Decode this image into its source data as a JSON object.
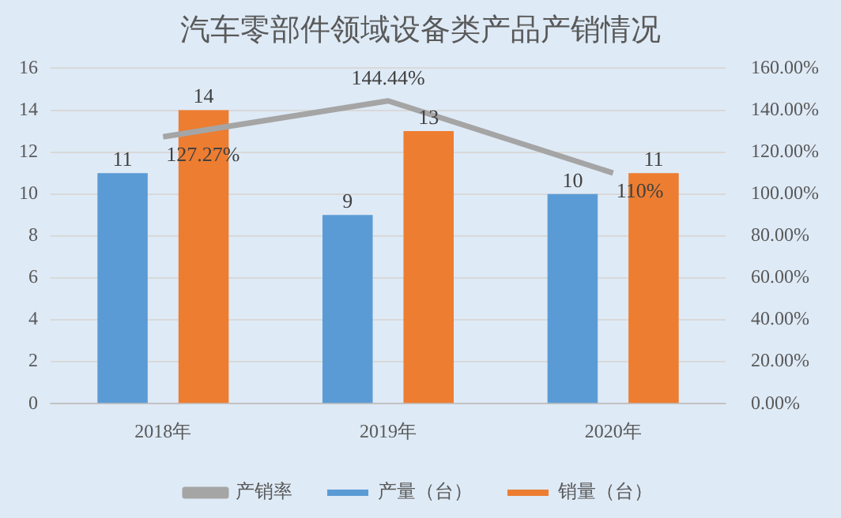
{
  "chart_data": {
    "type": "bar",
    "title": "汽车零部件领域设备类产品产销情况",
    "categories": [
      "2018年",
      "2019年",
      "2020年"
    ],
    "series": [
      {
        "name": "产量（台）",
        "color": "#5b9bd5",
        "values": [
          11,
          9,
          10
        ],
        "value_labels": [
          "11",
          "9",
          "10"
        ]
      },
      {
        "name": "销量（台）",
        "color": "#ed7d31",
        "values": [
          14,
          13,
          11
        ],
        "value_labels": [
          "14",
          "13",
          "11"
        ]
      },
      {
        "name": "产销率",
        "type": "line",
        "axis": "y2",
        "color": "#a5a5a5",
        "values": [
          127.27,
          144.44,
          110
        ],
        "value_labels": [
          "127.27%",
          "144.44%",
          "110%"
        ]
      }
    ],
    "ylim": [
      0,
      16
    ],
    "yticks": [
      0,
      2,
      4,
      6,
      8,
      10,
      12,
      14,
      16
    ],
    "y2lim": [
      0,
      160
    ],
    "y2ticks": [
      {
        "value": 0,
        "label": "0.00%"
      },
      {
        "value": 20,
        "label": "20.00%"
      },
      {
        "value": 40,
        "label": "40.00%"
      },
      {
        "value": 60,
        "label": "60.00%"
      },
      {
        "value": 80,
        "label": "80.00%"
      },
      {
        "value": 100,
        "label": "100.00%"
      },
      {
        "value": 120,
        "label": "120.00%"
      },
      {
        "value": 140,
        "label": "140.00%"
      },
      {
        "value": 160,
        "label": "160.00%"
      }
    ],
    "grid": "y",
    "legend": "bottom",
    "marker": "none"
  }
}
